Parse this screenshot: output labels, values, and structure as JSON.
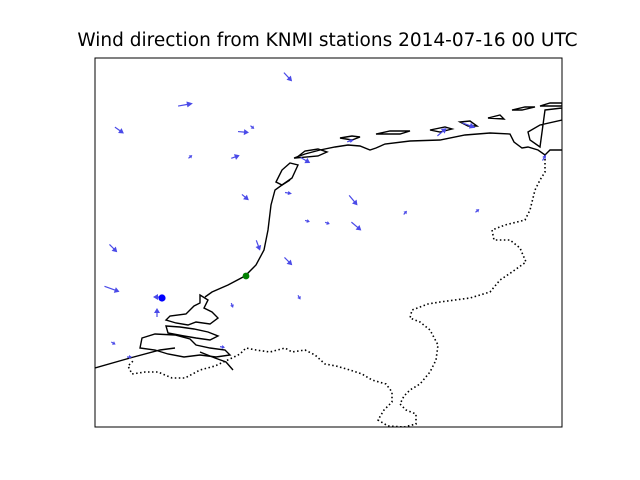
{
  "title": "Wind direction from KNMI stations 2014-07-16 00 UTC",
  "colors": {
    "arrow": "#4a4ae8",
    "marker_blue": "#0000ff",
    "marker_green": "#008000",
    "coastline": "#000000",
    "border": "#000000"
  },
  "chart_data": {
    "type": "map",
    "projection": "lat-lon map of the Netherlands",
    "map_features": [
      "coastline",
      "national border (dotted)"
    ],
    "markers": [
      {
        "color": "blue"
      },
      {
        "color": "green"
      }
    ],
    "wind_vectors_count": 29
  }
}
